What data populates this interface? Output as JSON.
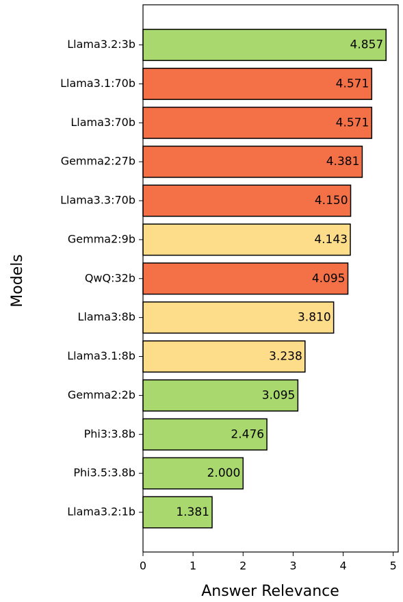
{
  "chart_data": {
    "type": "barh",
    "xlabel": "Answer Relevance",
    "ylabel": "Models",
    "categories": [
      "Llama3.2:3b",
      "Llama3.1:70b",
      "Llama3:70b",
      "Gemma2:27b",
      "Llama3.3:70b",
      "Gemma2:9b",
      "QwQ:32b",
      "Llama3:8b",
      "Llama3.1:8b",
      "Gemma2:2b",
      "Phi3:3.8b",
      "Phi3.5:3.8b",
      "Llama3.2:1b"
    ],
    "values": [
      4.857,
      4.571,
      4.571,
      4.381,
      4.15,
      4.143,
      4.095,
      3.81,
      3.238,
      3.095,
      2.476,
      2.0,
      1.381
    ],
    "value_labels": [
      "4.857",
      "4.571",
      "4.571",
      "4.381",
      "4.150",
      "4.143",
      "4.095",
      "3.810",
      "3.238",
      "3.095",
      "2.476",
      "2.000",
      "1.381"
    ],
    "colors": [
      "#a8d86e",
      "#f47148",
      "#f47148",
      "#f47148",
      "#f47148",
      "#fddc8a",
      "#f47148",
      "#fddc8a",
      "#fddc8a",
      "#a8d86e",
      "#a8d86e",
      "#a8d86e",
      "#a8d86e"
    ],
    "xlim": [
      0,
      5.1
    ],
    "xticks": [
      0,
      1,
      2,
      3,
      4,
      5
    ],
    "grid": false
  }
}
